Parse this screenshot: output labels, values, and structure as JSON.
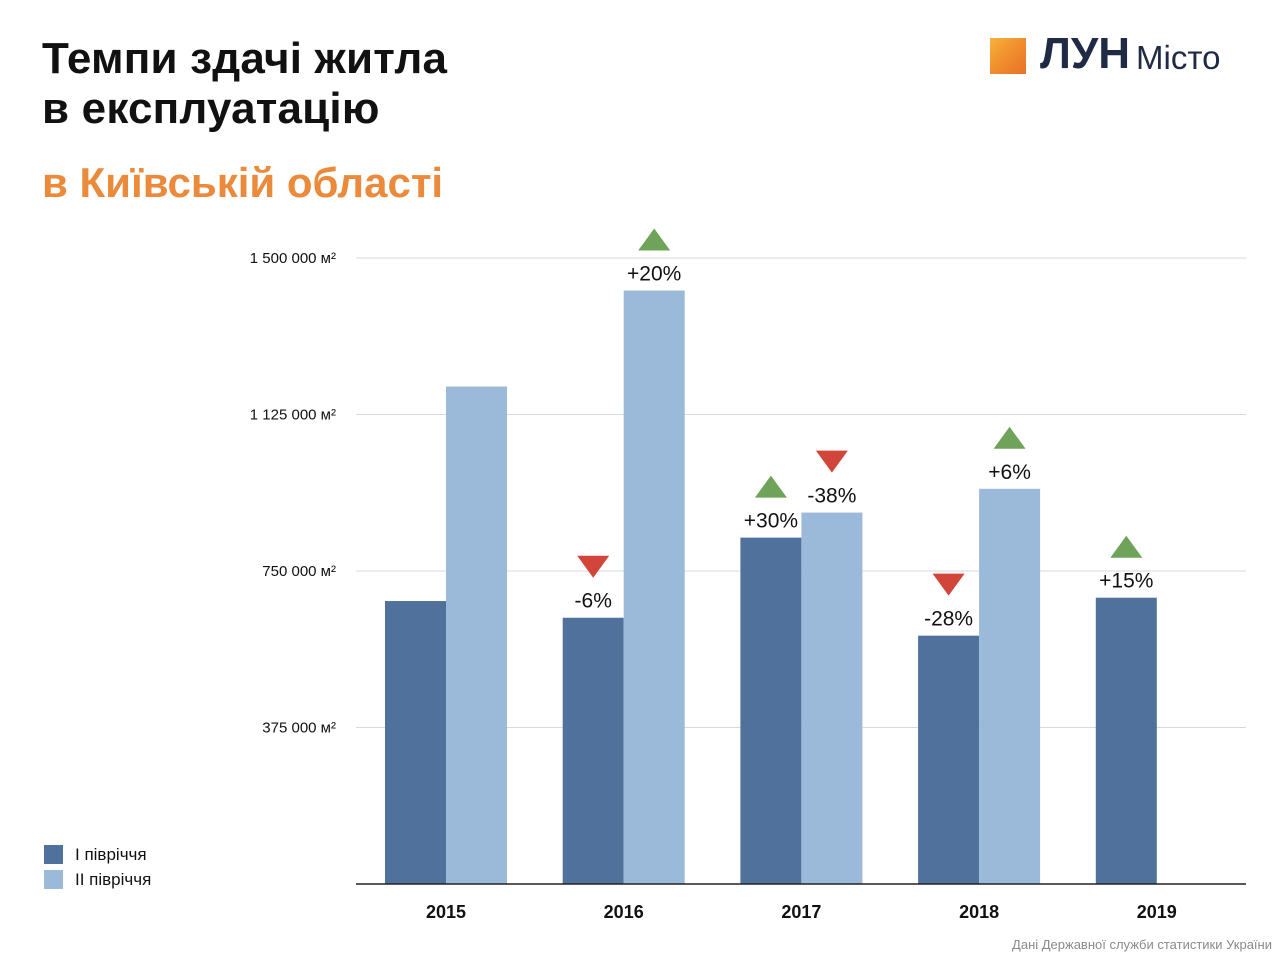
{
  "header": {
    "title_line1": "Темпи здачі житла",
    "title_line2": "в експлуатацію",
    "subtitle": "в Київській області"
  },
  "logo": {
    "name": "ЛУН",
    "sub": "Місто"
  },
  "source": "Дані Державної служби статистики України",
  "colors": {
    "series1": "#50719b",
    "series2": "#9bb9d8",
    "up": "#6fa35a",
    "down": "#d2453a",
    "accent": "#ea8a3a",
    "grid": "#d9d9d9",
    "axis": "#222222"
  },
  "chart_data": {
    "type": "bar",
    "categories": [
      "2015",
      "2016",
      "2017",
      "2018",
      "2019"
    ],
    "ylim": [
      0,
      1500000
    ],
    "yticks": [
      375000,
      750000,
      1125000,
      1500000
    ],
    "ytick_labels": [
      "375 000 м²",
      "750 000 м²",
      "1 125 000 м²",
      "1 500 000 м²"
    ],
    "grid": true,
    "legend_position": "bottom-left",
    "series": [
      {
        "name": "І півріччя",
        "values": [
          678000,
          638000,
          830000,
          595000,
          686000
        ],
        "changes": [
          null,
          "-6%",
          "+30%",
          "-28%",
          "+15%"
        ],
        "directions": [
          null,
          "down",
          "up",
          "down",
          "up"
        ]
      },
      {
        "name": "ІІ півріччя",
        "values": [
          1192000,
          1422000,
          890000,
          947000,
          null
        ],
        "changes": [
          null,
          "+20%",
          "-38%",
          "+6%",
          null
        ],
        "directions": [
          null,
          "up",
          "down",
          "up",
          null
        ]
      }
    ]
  }
}
